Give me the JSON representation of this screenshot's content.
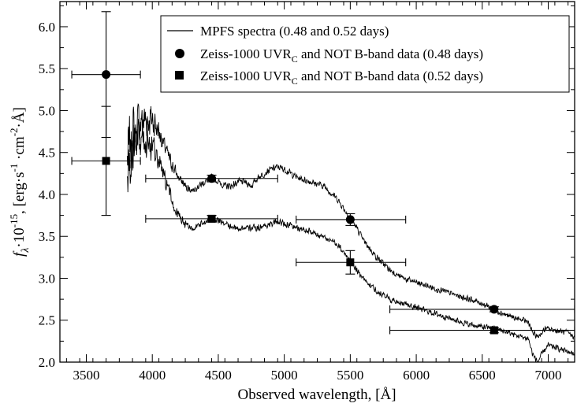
{
  "chart_data": {
    "type": "line",
    "xlabel": "Observed wavelength, [Å]",
    "xlabel_prefix": "Observed wavelength, [",
    "xlabel_unit": "Å",
    "xlabel_suffix": "]",
    "ylabel": "fλ·10^-15, [erg·s^-1·cm^-2·Å]",
    "ylabel_parts": {
      "f": "f",
      "lambda": "λ",
      "mult": "·10",
      "exp15": "-15",
      "open": ", [erg·s",
      "m1": "-1",
      "cm": " ·cm",
      "m2": "-2",
      "ang": "·Å]"
    },
    "xlim": [
      3300,
      7200
    ],
    "ylim": [
      2.0,
      6.3
    ],
    "xticks": [
      3500,
      4000,
      4500,
      5000,
      5500,
      6000,
      6500,
      7000
    ],
    "xtick_labels": [
      "3500",
      "4000",
      "4500",
      "5000",
      "5500",
      "6000",
      "6500",
      "7000"
    ],
    "yticks": [
      2.0,
      2.5,
      3.0,
      3.5,
      4.0,
      4.5,
      5.0,
      5.5,
      6.0
    ],
    "ytick_labels": [
      "2.0",
      "2.5",
      "3.0",
      "3.5",
      "4.0",
      "4.5",
      "5.0",
      "5.5",
      "6.0"
    ],
    "legend_position": "top-right",
    "legend": [
      {
        "marker": "line",
        "label": "MPFS spectra (0.48 and 0.52 days)"
      },
      {
        "marker": "circle",
        "label_main": "Zeiss-1000 UVR",
        "label_sub": "C",
        "label_rest": " and NOT B-band data (0.48 days)"
      },
      {
        "marker": "square",
        "label_main": "Zeiss-1000 UVR",
        "label_sub": "C",
        "label_rest": " and NOT B-band data (0.52 days)"
      }
    ],
    "series": [
      {
        "name": "MPFS spectrum 0.48 days",
        "anchors": [
          [
            3810,
            4.4
          ],
          [
            3850,
            4.7
          ],
          [
            3900,
            4.85
          ],
          [
            3950,
            4.9
          ],
          [
            4000,
            4.9
          ],
          [
            4050,
            4.75
          ],
          [
            4100,
            4.55
          ],
          [
            4150,
            4.35
          ],
          [
            4200,
            4.2
          ],
          [
            4250,
            4.1
          ],
          [
            4300,
            4.05
          ],
          [
            4350,
            4.1
          ],
          [
            4400,
            4.15
          ],
          [
            4450,
            4.2
          ],
          [
            4500,
            4.15
          ],
          [
            4550,
            4.1
          ],
          [
            4600,
            4.1
          ],
          [
            4650,
            4.15
          ],
          [
            4700,
            4.15
          ],
          [
            4750,
            4.1
          ],
          [
            4800,
            4.2
          ],
          [
            4850,
            4.25
          ],
          [
            4900,
            4.3
          ],
          [
            4950,
            4.33
          ],
          [
            5000,
            4.3
          ],
          [
            5050,
            4.25
          ],
          [
            5100,
            4.2
          ],
          [
            5200,
            4.15
          ],
          [
            5300,
            4.1
          ],
          [
            5400,
            3.95
          ],
          [
            5500,
            3.72
          ],
          [
            5550,
            3.6
          ],
          [
            5600,
            3.45
          ],
          [
            5700,
            3.25
          ],
          [
            5800,
            3.1
          ],
          [
            5900,
            3.0
          ],
          [
            6000,
            2.95
          ],
          [
            6100,
            2.9
          ],
          [
            6200,
            2.85
          ],
          [
            6300,
            2.8
          ],
          [
            6400,
            2.75
          ],
          [
            6500,
            2.7
          ],
          [
            6600,
            2.62
          ],
          [
            6700,
            2.55
          ],
          [
            6800,
            2.5
          ],
          [
            6850,
            2.48
          ],
          [
            6880,
            2.35
          ],
          [
            6920,
            2.3
          ],
          [
            6980,
            2.4
          ],
          [
            7050,
            2.38
          ],
          [
            7150,
            2.35
          ],
          [
            7200,
            2.3
          ]
        ],
        "noise": [
          [
            3810,
            0.55
          ],
          [
            3900,
            0.35
          ],
          [
            4000,
            0.25
          ],
          [
            4100,
            0.12
          ],
          [
            4300,
            0.05
          ],
          [
            7200,
            0.04
          ]
        ]
      },
      {
        "name": "MPFS spectrum 0.52 days",
        "anchors": [
          [
            3810,
            4.2
          ],
          [
            3850,
            4.45
          ],
          [
            3900,
            4.6
          ],
          [
            3950,
            4.65
          ],
          [
            4000,
            4.55
          ],
          [
            4050,
            4.4
          ],
          [
            4100,
            4.15
          ],
          [
            4150,
            3.9
          ],
          [
            4200,
            3.75
          ],
          [
            4250,
            3.65
          ],
          [
            4300,
            3.6
          ],
          [
            4350,
            3.62
          ],
          [
            4400,
            3.68
          ],
          [
            4450,
            3.72
          ],
          [
            4500,
            3.7
          ],
          [
            4550,
            3.65
          ],
          [
            4600,
            3.6
          ],
          [
            4700,
            3.6
          ],
          [
            4800,
            3.6
          ],
          [
            4900,
            3.65
          ],
          [
            4950,
            3.68
          ],
          [
            5000,
            3.65
          ],
          [
            5100,
            3.6
          ],
          [
            5200,
            3.55
          ],
          [
            5300,
            3.5
          ],
          [
            5400,
            3.4
          ],
          [
            5500,
            3.22
          ],
          [
            5550,
            3.1
          ],
          [
            5600,
            3.0
          ],
          [
            5700,
            2.85
          ],
          [
            5800,
            2.75
          ],
          [
            5900,
            2.7
          ],
          [
            6000,
            2.65
          ],
          [
            6100,
            2.6
          ],
          [
            6200,
            2.55
          ],
          [
            6300,
            2.5
          ],
          [
            6400,
            2.45
          ],
          [
            6500,
            2.42
          ],
          [
            6600,
            2.4
          ],
          [
            6700,
            2.35
          ],
          [
            6800,
            2.3
          ],
          [
            6850,
            2.28
          ],
          [
            6880,
            2.1
          ],
          [
            6920,
            2.0
          ],
          [
            6960,
            2.12
          ],
          [
            7000,
            2.2
          ],
          [
            7100,
            2.15
          ],
          [
            7200,
            2.1
          ]
        ],
        "noise": [
          [
            3810,
            0.5
          ],
          [
            3900,
            0.32
          ],
          [
            4000,
            0.22
          ],
          [
            4100,
            0.12
          ],
          [
            4300,
            0.05
          ],
          [
            7200,
            0.04
          ]
        ]
      }
    ],
    "photometry_048": [
      {
        "x": 3650,
        "y": 5.43,
        "xerr_lo": 3390,
        "xerr_hi": 3910,
        "yerr_lo": 4.68,
        "yerr_hi": 6.18
      },
      {
        "x": 4450,
        "y": 4.19,
        "xerr_lo": 3950,
        "xerr_hi": 4950,
        "yerr_lo": 4.15,
        "yerr_hi": 4.23
      },
      {
        "x": 5500,
        "y": 3.7,
        "xerr_lo": 5090,
        "xerr_hi": 5920,
        "yerr_lo": 3.63,
        "yerr_hi": 3.77
      },
      {
        "x": 6590,
        "y": 2.63,
        "xerr_lo": 5800,
        "xerr_hi": 7200,
        "yerr_lo": 2.6,
        "yerr_hi": 2.66
      }
    ],
    "photometry_052": [
      {
        "x": 3650,
        "y": 4.4,
        "xerr_lo": 3390,
        "xerr_hi": 3910,
        "yerr_lo": 3.75,
        "yerr_hi": 5.05
      },
      {
        "x": 4450,
        "y": 3.71,
        "xerr_lo": 3950,
        "xerr_hi": 4950,
        "yerr_lo": 3.67,
        "yerr_hi": 3.75
      },
      {
        "x": 5500,
        "y": 3.19,
        "xerr_lo": 5090,
        "xerr_hi": 5920,
        "yerr_lo": 3.05,
        "yerr_hi": 3.33
      },
      {
        "x": 6590,
        "y": 2.38,
        "xerr_lo": 5800,
        "xerr_hi": 7200,
        "yerr_lo": 2.35,
        "yerr_hi": 2.41
      }
    ]
  }
}
